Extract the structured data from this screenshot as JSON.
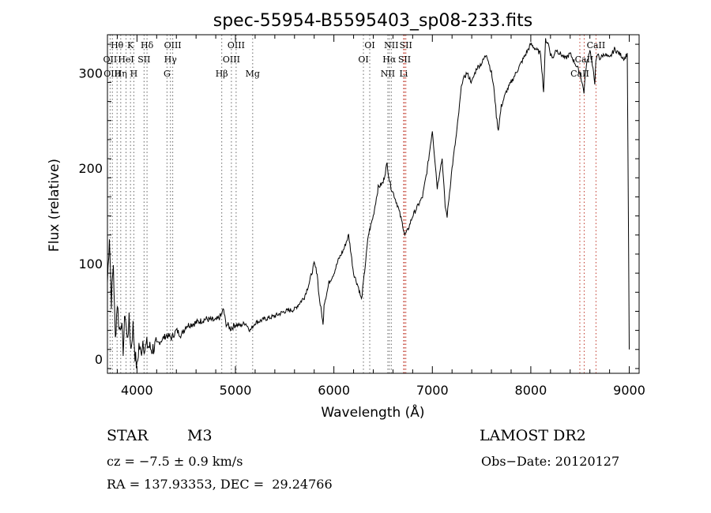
{
  "chart_data": {
    "type": "line",
    "title": "spec-55954-B5595403_sp08-233.fits",
    "xlabel": "Wavelength (Å)",
    "ylabel": "Flux (relative)",
    "xlim": [
      3700,
      9100
    ],
    "ylim": [
      -15,
      340
    ],
    "xticks": [
      4000,
      5000,
      6000,
      7000,
      8000,
      9000
    ],
    "yticks": [
      0,
      100,
      200,
      300
    ],
    "grid": false,
    "series": [
      {
        "x": [
          3700,
          3720,
          3740,
          3760,
          3780,
          3800,
          3820,
          3840,
          3860,
          3880,
          3900,
          3920,
          3940,
          3960,
          3980,
          4000,
          4020,
          4040,
          4060,
          4080,
          4100,
          4150,
          4200,
          4250,
          4300,
          4350,
          4400,
          4450,
          4500,
          4600,
          4700,
          4800,
          4850,
          4880,
          4900,
          4950,
          5000,
          5050,
          5100,
          5150,
          5200,
          5300,
          5400,
          5500,
          5600,
          5700,
          5750,
          5800,
          5830,
          5850,
          5880,
          5890,
          5900,
          5930,
          5950,
          6000,
          6050,
          6100,
          6150,
          6200,
          6250,
          6280,
          6300,
          6330,
          6350,
          6400,
          6450,
          6500,
          6540,
          6560,
          6580,
          6600,
          6650,
          6700,
          6720,
          6750,
          6800,
          6850,
          6900,
          6950,
          7000,
          7050,
          7080,
          7100,
          7130,
          7150,
          7200,
          7250,
          7300,
          7350,
          7400,
          7450,
          7500,
          7550,
          7600,
          7630,
          7650,
          7670,
          7700,
          7750,
          7800,
          7850,
          7900,
          7950,
          8000,
          8050,
          8100,
          8130,
          8150,
          8180,
          8200,
          8230,
          8250,
          8300,
          8350,
          8400,
          8450,
          8500,
          8520,
          8540,
          8560,
          8600,
          8650,
          8660,
          8680,
          8700,
          8750,
          8800,
          8850,
          8900,
          8950,
          8980,
          9000
        ],
        "y": [
          80,
          130,
          60,
          100,
          20,
          60,
          30,
          40,
          10,
          50,
          20,
          40,
          10,
          35,
          5,
          -10,
          15,
          5,
          20,
          10,
          15,
          10,
          15,
          20,
          25,
          22,
          30,
          25,
          35,
          38,
          42,
          40,
          45,
          52,
          38,
          32,
          36,
          35,
          38,
          30,
          38,
          42,
          45,
          50,
          52,
          65,
          80,
          100,
          90,
          65,
          45,
          35,
          58,
          70,
          80,
          90,
          105,
          115,
          130,
          90,
          75,
          62,
          80,
          110,
          130,
          150,
          180,
          185,
          205,
          190,
          180,
          175,
          160,
          140,
          130,
          135,
          150,
          160,
          170,
          200,
          240,
          180,
          200,
          210,
          160,
          150,
          200,
          240,
          290,
          300,
          290,
          305,
          310,
          320,
          300,
          280,
          255,
          240,
          265,
          280,
          290,
          300,
          310,
          320,
          330,
          325,
          320,
          280,
          335,
          330,
          320,
          315,
          325,
          320,
          315,
          320,
          310,
          300,
          290,
          280,
          305,
          325,
          290,
          310,
          320,
          315,
          320,
          315,
          325,
          320,
          315,
          320,
          10
        ]
      }
    ],
    "line_markers": [
      {
        "label": "Hθ",
        "wavelength": 3798,
        "row": 0
      },
      {
        "label": "K",
        "wavelength": 3934,
        "row": 0
      },
      {
        "label": "Hδ",
        "wavelength": 4102,
        "row": 0
      },
      {
        "label": "OIII",
        "wavelength": 4363,
        "row": 0
      },
      {
        "label": "OIII",
        "wavelength": 5007,
        "row": 0
      },
      {
        "label": "OI",
        "wavelength": 6364,
        "row": 0
      },
      {
        "label": "NII",
        "wavelength": 6583,
        "row": 0
      },
      {
        "label": "SII",
        "wavelength": 6731,
        "row": 0
      },
      {
        "label": "CaII",
        "wavelength": 8662,
        "row": 0
      },
      {
        "label": "OII",
        "wavelength": 3727,
        "row": 1
      },
      {
        "label": "HeI",
        "wavelength": 3889,
        "row": 1
      },
      {
        "label": "SII",
        "wavelength": 4072,
        "row": 1
      },
      {
        "label": "Hγ",
        "wavelength": 4340,
        "row": 1
      },
      {
        "label": "OIII",
        "wavelength": 4959,
        "row": 1
      },
      {
        "label": "OI",
        "wavelength": 6300,
        "row": 1
      },
      {
        "label": "Hα",
        "wavelength": 6563,
        "row": 1
      },
      {
        "label": "SII",
        "wavelength": 6717,
        "row": 1
      },
      {
        "label": "CaII",
        "wavelength": 8542,
        "row": 1
      },
      {
        "label": "OIII",
        "wavelength": 3750,
        "row": 2
      },
      {
        "label": "Hη",
        "wavelength": 3835,
        "row": 2
      },
      {
        "label": "H",
        "wavelength": 3968,
        "row": 2
      },
      {
        "label": "G",
        "wavelength": 4305,
        "row": 2
      },
      {
        "label": "Hβ",
        "wavelength": 4861,
        "row": 2
      },
      {
        "label": "Mg",
        "wavelength": 5175,
        "row": 2
      },
      {
        "label": "NII",
        "wavelength": 6548,
        "row": 2
      },
      {
        "label": "Li",
        "wavelength": 6708,
        "row": 2
      },
      {
        "label": "CaII",
        "wavelength": 8498,
        "row": 2
      }
    ]
  },
  "info": {
    "object_class": "STAR",
    "subclass": "M3",
    "survey": "LAMOST DR2",
    "cz": "cz = −7.5 ± 0.9 km/s",
    "obs_date": "Obs−Date: 20120127",
    "coords": "RA = 137.93353, DEC =  29.24766"
  }
}
